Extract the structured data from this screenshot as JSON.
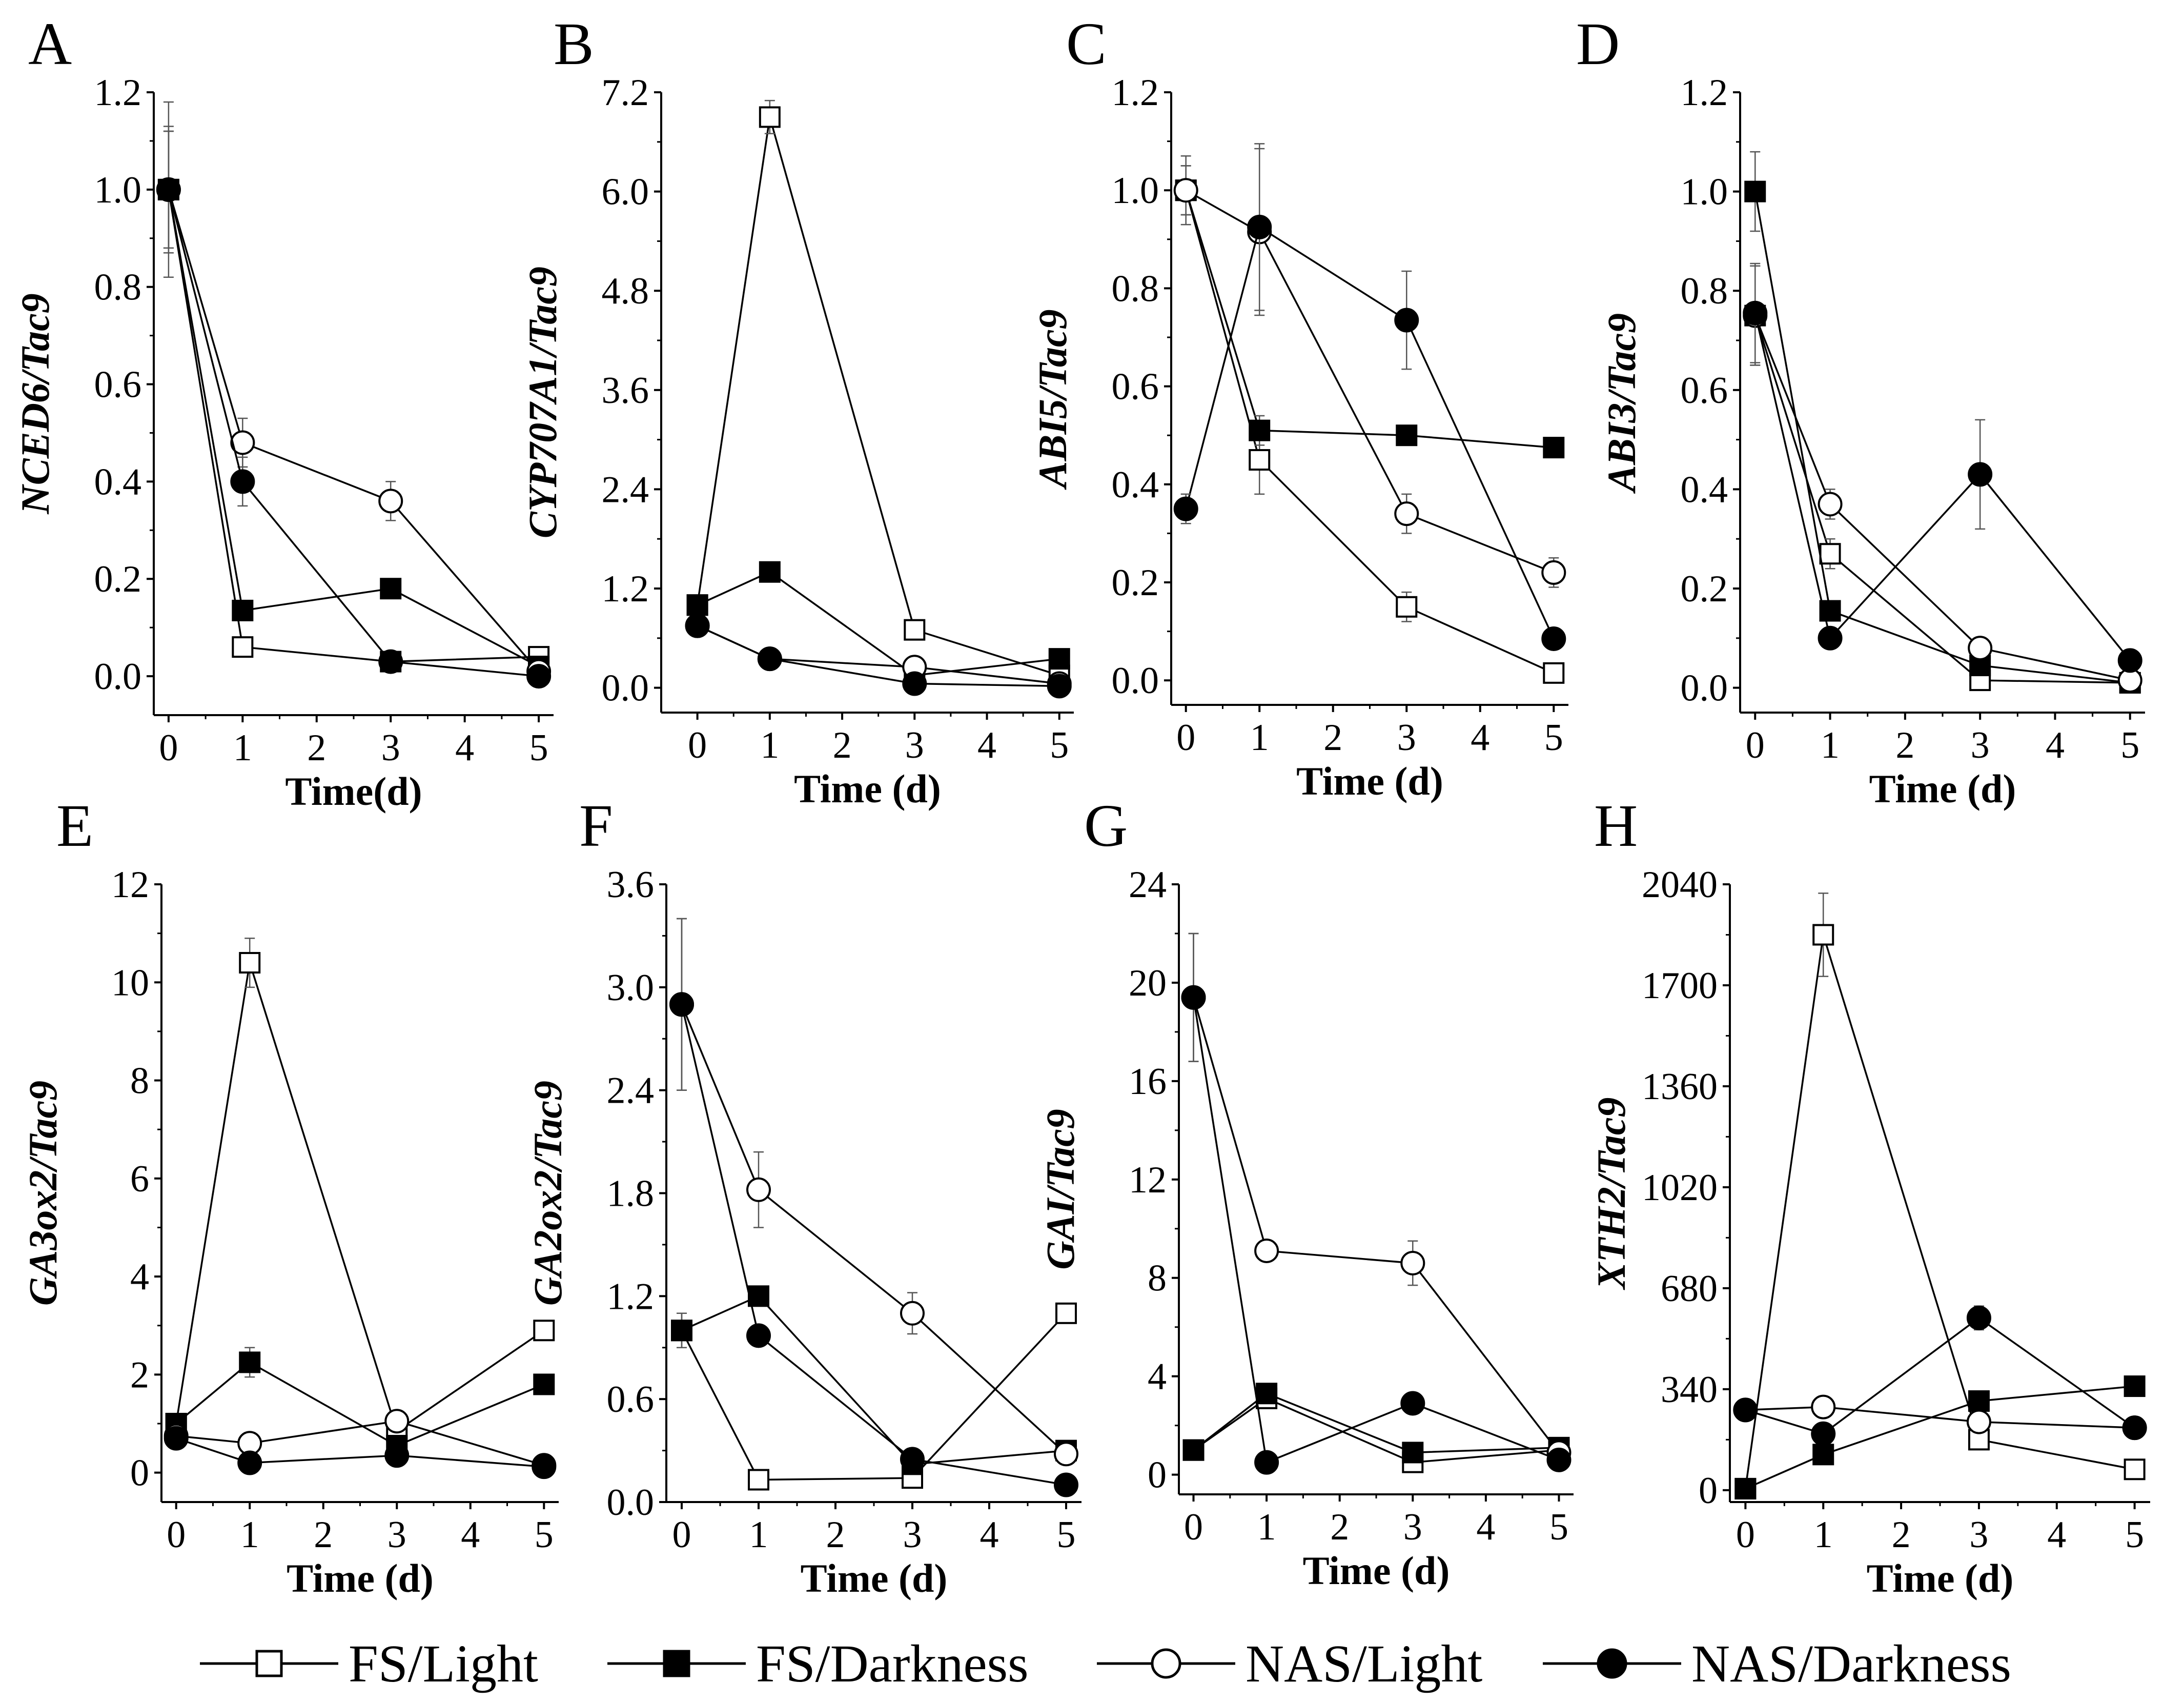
{
  "chart_data": [
    {
      "panel": "A",
      "type": "line",
      "xlabel": "Time(d)",
      "ylabel": "NCED6/Tac9",
      "x": [
        0,
        1,
        3,
        5
      ],
      "xlim": [
        -0.2,
        5.2
      ],
      "xticks": [
        0,
        1,
        2,
        3,
        4,
        5
      ],
      "ylim": [
        -0.08,
        1.2
      ],
      "yticks": [
        0.0,
        0.2,
        0.4,
        0.6,
        0.8,
        1.0,
        1.2
      ],
      "ytick_labels": [
        "0.0",
        "0.2",
        "0.4",
        "0.6",
        "0.8",
        "1.0",
        "1.2"
      ],
      "series": [
        {
          "name": "FS/Light",
          "values": [
            1.0,
            0.06,
            0.03,
            0.04
          ],
          "errors": [
            0.13,
            0.02,
            0.01,
            0.01
          ]
        },
        {
          "name": "FS/Darkness",
          "values": [
            1.0,
            0.135,
            0.18,
            0.02
          ],
          "errors": [
            0.12,
            0.02,
            0.01,
            0.01
          ]
        },
        {
          "name": "NAS/Light",
          "values": [
            1.0,
            0.48,
            0.36,
            0.01
          ],
          "errors": [
            0.18,
            0.05,
            0.04,
            0.005
          ]
        },
        {
          "name": "NAS/Darkness",
          "values": [
            1.0,
            0.4,
            0.03,
            0.0
          ],
          "errors": [
            0.12,
            0.05,
            0.01,
            0.005
          ]
        }
      ]
    },
    {
      "panel": "B",
      "type": "line",
      "xlabel": "Time (d)",
      "ylabel": "CYP707A1/Tac9",
      "x": [
        0,
        1,
        3,
        5
      ],
      "xlim": [
        -0.5,
        5.2
      ],
      "xticks": [
        0,
        1,
        2,
        3,
        4,
        5
      ],
      "ylim": [
        -0.3,
        7.2
      ],
      "yticks": [
        0.0,
        1.2,
        2.4,
        3.6,
        4.8,
        6.0,
        7.2
      ],
      "ytick_labels": [
        "0.0",
        "1.2",
        "2.4",
        "3.6",
        "4.8",
        "6.0",
        "7.2"
      ],
      "series": [
        {
          "name": "FS/Light",
          "values": [
            1.0,
            6.9,
            0.7,
            0.15
          ],
          "errors": [
            0.08,
            0.2,
            0.08,
            0.03
          ]
        },
        {
          "name": "FS/Darkness",
          "values": [
            1.0,
            1.4,
            0.15,
            0.35
          ],
          "errors": [
            0.05,
            0.05,
            0.02,
            0.03
          ]
        },
        {
          "name": "NAS/Light",
          "values": [
            0.75,
            0.35,
            0.25,
            0.05
          ],
          "errors": [
            0.05,
            0.03,
            0.02,
            0.01
          ]
        },
        {
          "name": "NAS/Darkness",
          "values": [
            0.75,
            0.35,
            0.05,
            0.02
          ],
          "errors": [
            0.05,
            0.03,
            0.01,
            0.01
          ]
        }
      ]
    },
    {
      "panel": "C",
      "type": "line",
      "xlabel": "Time (d)",
      "ylabel": "ABI5/Tac9",
      "x": [
        0,
        1,
        3,
        5
      ],
      "xlim": [
        -0.2,
        5.2
      ],
      "xticks": [
        0,
        1,
        2,
        3,
        4,
        5
      ],
      "ylim": [
        -0.05,
        1.2
      ],
      "yticks": [
        0.0,
        0.2,
        0.4,
        0.6,
        0.8,
        1.0,
        1.2
      ],
      "ytick_labels": [
        "0.0",
        "0.2",
        "0.4",
        "0.6",
        "0.8",
        "1.0",
        "1.2"
      ],
      "series": [
        {
          "name": "FS/Light",
          "values": [
            1.0,
            0.45,
            0.15,
            0.015
          ],
          "errors": [
            0.05,
            0.07,
            0.03,
            0.01
          ]
        },
        {
          "name": "FS/Darkness",
          "values": [
            1.0,
            0.51,
            0.5,
            0.475
          ],
          "errors": [
            0.05,
            0.03,
            0.02,
            0.01
          ]
        },
        {
          "name": "NAS/Light",
          "values": [
            1.0,
            0.915,
            0.34,
            0.22
          ],
          "errors": [
            0.07,
            0.17,
            0.04,
            0.03
          ]
        },
        {
          "name": "NAS/Darkness",
          "values": [
            0.35,
            0.925,
            0.735,
            0.085
          ],
          "errors": [
            0.03,
            0.17,
            0.1,
            0.01
          ]
        }
      ]
    },
    {
      "panel": "D",
      "type": "line",
      "xlabel": "Time (d)",
      "ylabel": "ABI3/Tac9",
      "x": [
        0,
        1,
        3,
        5
      ],
      "xlim": [
        -0.2,
        5.2
      ],
      "xticks": [
        0,
        1,
        2,
        3,
        4,
        5
      ],
      "ylim": [
        -0.05,
        1.2
      ],
      "yticks": [
        0.0,
        0.2,
        0.4,
        0.6,
        0.8,
        1.0,
        1.2
      ],
      "ytick_labels": [
        "0.0",
        "0.2",
        "0.4",
        "0.6",
        "0.8",
        "1.0",
        "1.2"
      ],
      "series": [
        {
          "name": "FS/Light",
          "values": [
            0.75,
            0.27,
            0.015,
            0.01
          ],
          "errors": [
            0.1,
            0.03,
            0.01,
            0.005
          ]
        },
        {
          "name": "FS/Darkness",
          "values": [
            1.0,
            0.155,
            0.045,
            0.01
          ],
          "errors": [
            0.08,
            0.02,
            0.01,
            0.005
          ]
        },
        {
          "name": "NAS/Light",
          "values": [
            0.75,
            0.37,
            0.08,
            0.015
          ],
          "errors": [
            0.1,
            0.03,
            0.01,
            0.005
          ]
        },
        {
          "name": "NAS/Darkness",
          "values": [
            0.755,
            0.1,
            0.43,
            0.055
          ],
          "errors": [
            0.1,
            0.01,
            0.11,
            0.01
          ]
        }
      ]
    },
    {
      "panel": "E",
      "type": "line",
      "xlabel": "Time (d)",
      "ylabel": "GA3ox2/Tac9",
      "x": [
        0,
        1,
        3,
        5
      ],
      "xlim": [
        -0.2,
        5.2
      ],
      "xticks": [
        0,
        1,
        2,
        3,
        4,
        5
      ],
      "ylim": [
        -0.6,
        12
      ],
      "yticks": [
        0,
        2,
        4,
        6,
        8,
        10,
        12
      ],
      "ytick_labels": [
        "0",
        "2",
        "4",
        "6",
        "8",
        "10",
        "12"
      ],
      "series": [
        {
          "name": "FS/Light",
          "values": [
            1.0,
            10.4,
            0.85,
            2.9
          ],
          "errors": [
            0.1,
            0.5,
            0.1,
            0.2
          ]
        },
        {
          "name": "FS/Darkness",
          "values": [
            1.0,
            2.25,
            0.55,
            1.8
          ],
          "errors": [
            0.1,
            0.3,
            0.05,
            0.1
          ]
        },
        {
          "name": "NAS/Light",
          "values": [
            0.75,
            0.6,
            1.05,
            0.15
          ],
          "errors": [
            0.05,
            0.1,
            0.1,
            0.05
          ]
        },
        {
          "name": "NAS/Darkness",
          "values": [
            0.7,
            0.2,
            0.35,
            0.12
          ],
          "errors": [
            0.05,
            0.05,
            0.05,
            0.03
          ]
        }
      ]
    },
    {
      "panel": "F",
      "type": "line",
      "xlabel": "Time (d)",
      "ylabel": "GA2ox2/Tac9",
      "x": [
        0,
        1,
        3,
        5
      ],
      "xlim": [
        -0.2,
        5.2
      ],
      "xticks": [
        0,
        1,
        2,
        3,
        4,
        5
      ],
      "ylim": [
        0,
        3.6
      ],
      "yticks": [
        0.0,
        0.6,
        1.2,
        1.8,
        2.4,
        3.0,
        3.6
      ],
      "ytick_labels": [
        "0.0",
        "0.6",
        "1.2",
        "1.8",
        "2.4",
        "3.0",
        "3.6"
      ],
      "series": [
        {
          "name": "FS/Light",
          "values": [
            1.0,
            0.13,
            0.14,
            1.1
          ],
          "errors": [
            0.1,
            0.03,
            0.03,
            0.05
          ]
        },
        {
          "name": "FS/Darkness",
          "values": [
            1.0,
            1.2,
            0.22,
            0.3
          ],
          "errors": [
            0.1,
            0.05,
            0.03,
            0.03
          ]
        },
        {
          "name": "NAS/Light",
          "values": [
            2.9,
            1.82,
            1.1,
            0.28
          ],
          "errors": [
            0.5,
            0.22,
            0.12,
            0.03
          ]
        },
        {
          "name": "NAS/Darkness",
          "values": [
            2.9,
            0.97,
            0.25,
            0.1
          ],
          "errors": [
            0.5,
            0.05,
            0.03,
            0.02
          ]
        }
      ]
    },
    {
      "panel": "G",
      "type": "line",
      "xlabel": "Time (d)",
      "ylabel": "GAI/Tac9",
      "x": [
        0,
        1,
        3,
        5
      ],
      "xlim": [
        -0.2,
        5.2
      ],
      "xticks": [
        0,
        1,
        2,
        3,
        4,
        5
      ],
      "ylim": [
        -0.8,
        24
      ],
      "yticks": [
        0,
        4,
        8,
        12,
        16,
        20,
        24
      ],
      "ytick_labels": [
        "0",
        "4",
        "8",
        "12",
        "16",
        "20",
        "24"
      ],
      "series": [
        {
          "name": "FS/Light",
          "values": [
            1.0,
            3.1,
            0.5,
            1.0
          ],
          "errors": [
            0.2,
            0.4,
            0.1,
            0.1
          ]
        },
        {
          "name": "FS/Darkness",
          "values": [
            1.0,
            3.3,
            0.9,
            1.1
          ],
          "errors": [
            0.2,
            0.3,
            0.1,
            0.1
          ]
        },
        {
          "name": "NAS/Light",
          "values": [
            19.4,
            9.1,
            8.6,
            0.9
          ],
          "errors": [
            2.6,
            0.3,
            0.9,
            0.1
          ]
        },
        {
          "name": "NAS/Darkness",
          "values": [
            19.4,
            0.5,
            2.9,
            0.6
          ],
          "errors": [
            2.6,
            0.1,
            0.2,
            0.1
          ]
        }
      ]
    },
    {
      "panel": "H",
      "type": "line",
      "xlabel": "Time (d)",
      "ylabel": "XTH2/Tac9",
      "x": [
        0,
        1,
        3,
        5
      ],
      "xlim": [
        -0.2,
        5.2
      ],
      "xticks": [
        0,
        1,
        2,
        3,
        4,
        5
      ],
      "ylim": [
        -40,
        2040
      ],
      "yticks": [
        0,
        340,
        680,
        1020,
        1360,
        1700,
        2040
      ],
      "ytick_labels": [
        "0",
        "340",
        "680",
        "1020",
        "1360",
        "1700",
        "2040"
      ],
      "series": [
        {
          "name": "FS/Light",
          "values": [
            5,
            1870,
            170,
            70
          ],
          "errors": [
            2,
            140,
            20,
            15
          ]
        },
        {
          "name": "FS/Darkness",
          "values": [
            5,
            120,
            300,
            350
          ],
          "errors": [
            2,
            10,
            15,
            10
          ]
        },
        {
          "name": "NAS/Light",
          "values": [
            270,
            280,
            230,
            210
          ],
          "errors": [
            15,
            30,
            30,
            15
          ]
        },
        {
          "name": "NAS/Darkness",
          "values": [
            270,
            190,
            580,
            210
          ],
          "errors": [
            15,
            15,
            40,
            15
          ]
        }
      ]
    }
  ],
  "legend": [
    {
      "name": "FS/Light",
      "marker": "square",
      "fill": "open"
    },
    {
      "name": "FS/Darkness",
      "marker": "square",
      "fill": "filled"
    },
    {
      "name": "NAS/Light",
      "marker": "circle",
      "fill": "open"
    },
    {
      "name": "NAS/Darkness",
      "marker": "circle",
      "fill": "filled"
    }
  ],
  "colors": {
    "line": "#000000",
    "open_fill": "#ffffff",
    "filled": "#000000"
  }
}
